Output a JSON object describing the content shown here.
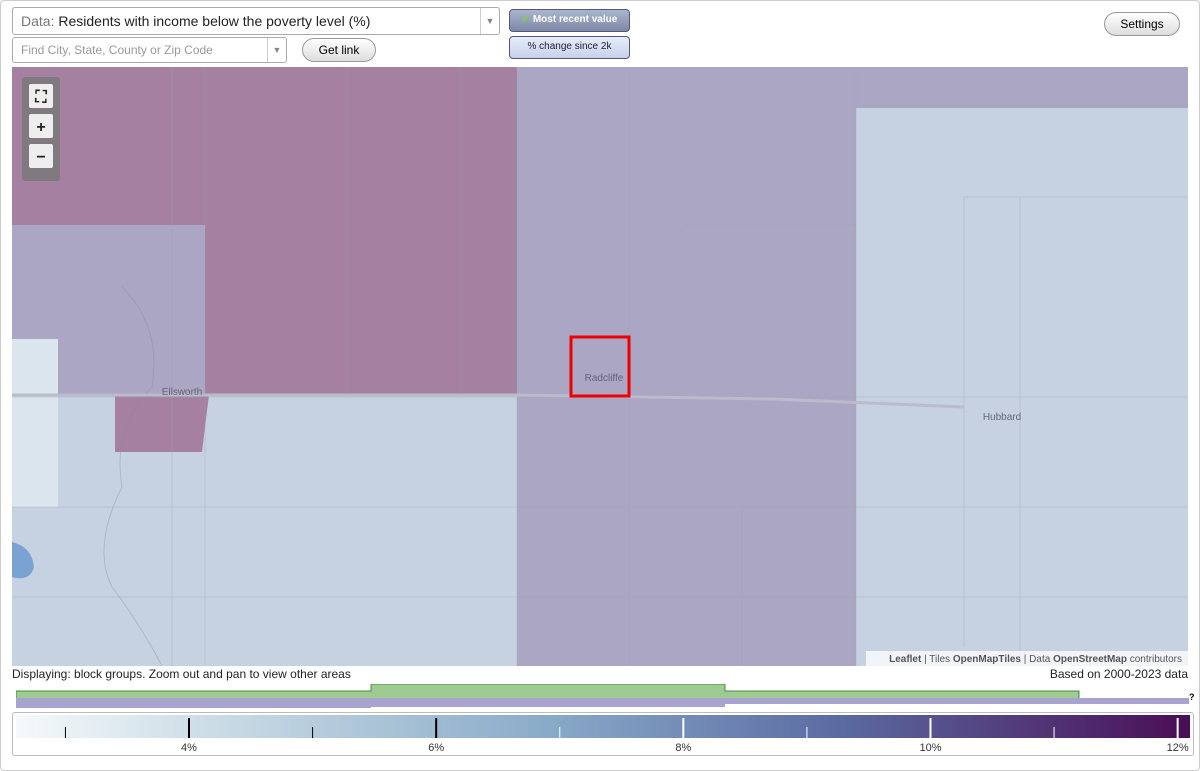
{
  "toolbar": {
    "data_label": "Data:",
    "data_value": "Residents with income below the poverty level (%)",
    "search_placeholder": "Find City, State, County or Zip Code",
    "get_link": "Get link",
    "most_recent": "Most recent value",
    "change": "% change since 2k",
    "settings": "Settings"
  },
  "map": {
    "places": [
      "Radcliffe",
      "Ellsworth",
      "Hubbard"
    ],
    "attribution": {
      "leaflet": "Leaflet",
      "tiles_label": "| Tiles",
      "tiles": "OpenMapTiles",
      "data_label": "| Data",
      "data": "OpenStreetMap",
      "contributors": "contributors"
    }
  },
  "footer": {
    "displaying": "Displaying: block groups. Zoom out and pan to view other areas",
    "based_on": "Based on 2000-2023 data",
    "help": "?"
  },
  "legend": {
    "range": [
      2.6,
      12.1
    ],
    "ticks": [
      {
        "value": 4,
        "label": "4%"
      },
      {
        "value": 6,
        "label": "6%"
      },
      {
        "value": 8,
        "label": "8%"
      },
      {
        "value": 10,
        "label": "10%"
      },
      {
        "value": 12,
        "label": "12%"
      }
    ],
    "minor_ticks": [
      3,
      5,
      7,
      9,
      11
    ]
  }
}
